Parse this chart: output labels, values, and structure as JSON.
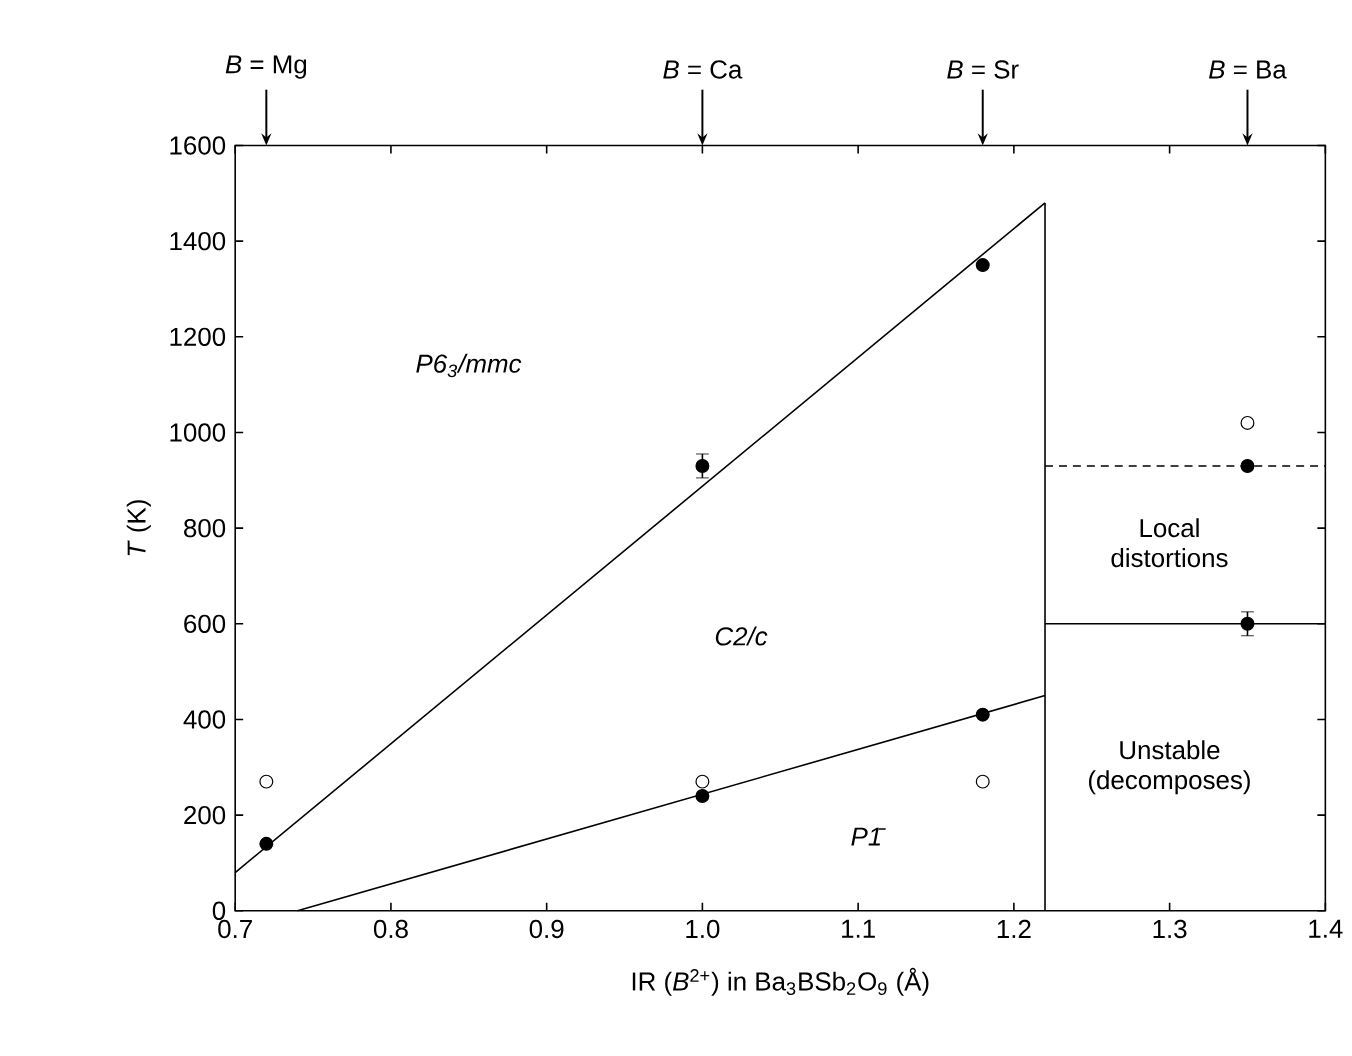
{
  "chart_data": {
    "type": "scatter",
    "xlabel": "IR (*B*$^{2+}$) in Ba$_{3}$BSb$_{2}$O$_{9}$ (Å)",
    "ylabel": "*T* (K)",
    "xlim": [
      0.7,
      1.4
    ],
    "xticks": [
      {
        "value": 0.7,
        "label": "0.7"
      },
      {
        "value": 0.8,
        "label": "0.8"
      },
      {
        "value": 0.9,
        "label": "0.9"
      },
      {
        "value": 1.0,
        "label": "1.0"
      },
      {
        "value": 1.1,
        "label": "1.1"
      },
      {
        "value": 1.2,
        "label": "1.2"
      },
      {
        "value": 1.3,
        "label": "1.3"
      },
      {
        "value": 1.4,
        "label": "1.4"
      }
    ],
    "ylim": [
      0,
      1600
    ],
    "yticks": [
      0,
      200,
      400,
      600,
      800,
      1000,
      1200,
      1400,
      1600
    ],
    "series": [
      {
        "type": "line",
        "color": "#000000",
        "x": [
          0.7,
          1.22
        ],
        "values": [
          80,
          1480
        ],
        "line_style": "solid",
        "marker": "none"
      },
      {
        "type": "line",
        "color": "#000000",
        "x": [
          0.74,
          1.22
        ],
        "values": [
          0,
          450
        ],
        "line_style": "solid",
        "marker": "none"
      },
      {
        "type": "line",
        "color": "#000000",
        "x": [
          1.22,
          1.22
        ],
        "values": [
          0,
          1480
        ],
        "line_style": "solid",
        "marker": "none"
      },
      {
        "type": "line",
        "color": "#000000",
        "x": [
          1.22,
          1.4
        ],
        "values": [
          600,
          600
        ],
        "line_style": "solid",
        "marker": "none"
      },
      {
        "type": "line",
        "color": "#000000",
        "x": [
          1.22,
          1.4
        ],
        "values": [
          930,
          930
        ],
        "line_style": "dashed",
        "marker": "none"
      },
      {
        "color": "#000000",
        "marker": "circle",
        "x": [
          0.72,
          1.0,
          1.18,
          1.0,
          1.18,
          1.35,
          1.35
        ],
        "values": [
          140,
          930,
          1350,
          240,
          410,
          930,
          600
        ],
        "errors": [
          null,
          25,
          null,
          null,
          null,
          null,
          25
        ]
      },
      {
        "color": "#ffffff",
        "marker": "circle",
        "x": [
          0.72,
          1.0,
          1.18,
          1.35
        ],
        "values": [
          270,
          270,
          270,
          1020
        ]
      }
    ],
    "annotations": [
      {
        "text": "*B* = Mg",
        "x": 0.72
      },
      {
        "text": "*B* = Ca",
        "x": 1.0
      },
      {
        "text": "*B* = Sr",
        "x": 1.18
      },
      {
        "text": "*B* = Ba",
        "x": 1.35
      },
      "P6$_{3}$/mmc",
      "C2/c",
      "P1̄",
      "Local distortions",
      "Unstable (decomposes)"
    ]
  }
}
